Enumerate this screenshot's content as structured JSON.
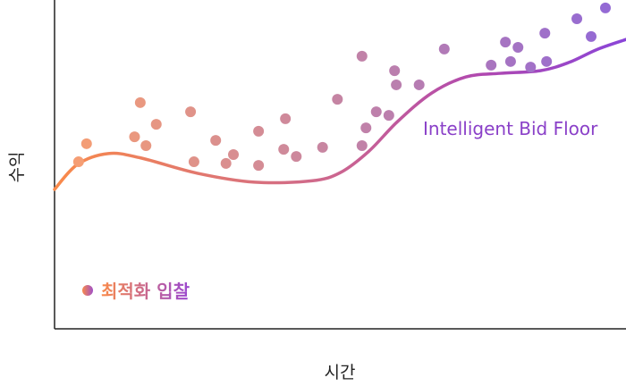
{
  "chart_data": {
    "type": "scatter",
    "title": "",
    "xlabel": "시간",
    "ylabel": "수익",
    "xlim": [
      0,
      100
    ],
    "ylim": [
      0,
      100
    ],
    "ticks_shown": false,
    "grid": false,
    "legend": {
      "placement": "bottom-left",
      "label": "최적화 입찰"
    },
    "colors": {
      "start": "#F98A4A",
      "end": "#8A45D8",
      "point_start": "#F9A070",
      "point_end": "#9068D8",
      "label": "#8A40C8"
    },
    "series": [
      {
        "name": "최적화 입찰",
        "type": "scatter",
        "points": [
          [
            4.2,
            50.8
          ],
          [
            5.6,
            56.3
          ],
          [
            14.0,
            58.4
          ],
          [
            15.0,
            68.8
          ],
          [
            16.0,
            55.7
          ],
          [
            17.8,
            62.2
          ],
          [
            23.8,
            66.0
          ],
          [
            24.4,
            50.8
          ],
          [
            28.2,
            57.3
          ],
          [
            30.0,
            50.3
          ],
          [
            31.3,
            53.0
          ],
          [
            35.7,
            60.1
          ],
          [
            35.7,
            49.7
          ],
          [
            40.1,
            54.6
          ],
          [
            40.4,
            63.9
          ],
          [
            42.3,
            52.4
          ],
          [
            46.9,
            55.2
          ],
          [
            49.5,
            69.8
          ],
          [
            53.8,
            82.9
          ],
          [
            53.8,
            55.7
          ],
          [
            54.5,
            61.1
          ],
          [
            56.3,
            66.0
          ],
          [
            58.5,
            64.9
          ],
          [
            59.5,
            78.5
          ],
          [
            59.8,
            74.2
          ],
          [
            63.8,
            74.2
          ],
          [
            68.2,
            85.1
          ],
          [
            76.4,
            80.2
          ],
          [
            78.9,
            87.2
          ],
          [
            79.8,
            81.3
          ],
          [
            81.1,
            85.6
          ],
          [
            83.3,
            79.6
          ],
          [
            85.8,
            89.9
          ],
          [
            86.1,
            81.3
          ],
          [
            91.4,
            94.3
          ],
          [
            93.9,
            88.9
          ],
          [
            96.4,
            97.6
          ]
        ]
      },
      {
        "name": "Intelligent Bid Floor",
        "type": "line",
        "points": [
          [
            0,
            42.4
          ],
          [
            4,
            50
          ],
          [
            9.4,
            53.3
          ],
          [
            15,
            52
          ],
          [
            25,
            47.3
          ],
          [
            35,
            44.6
          ],
          [
            45,
            45
          ],
          [
            50,
            47.5
          ],
          [
            55,
            54
          ],
          [
            60,
            63
          ],
          [
            66,
            71.7
          ],
          [
            72,
            76.6
          ],
          [
            78,
            77.7
          ],
          [
            85,
            78.5
          ],
          [
            90,
            81
          ],
          [
            95,
            85
          ],
          [
            100,
            88
          ]
        ]
      }
    ]
  }
}
